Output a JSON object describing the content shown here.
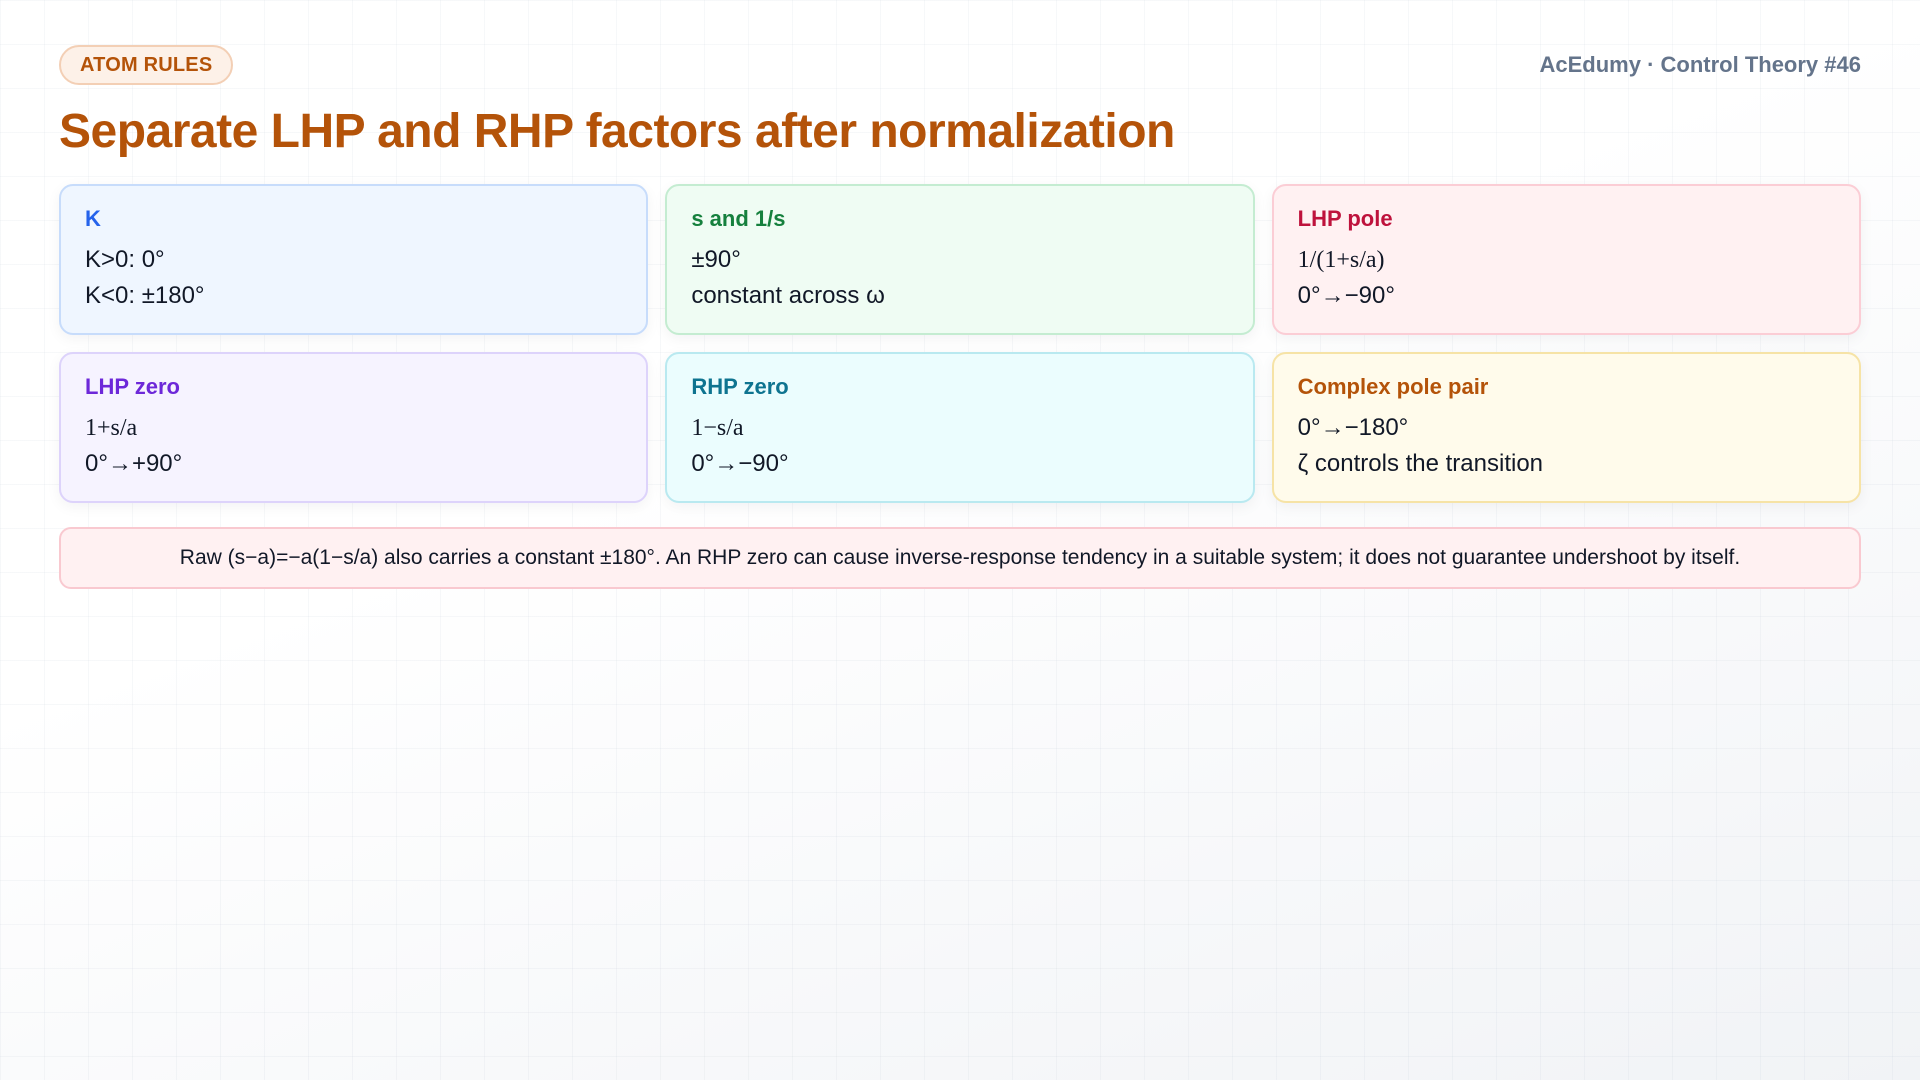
{
  "header": {
    "badge": "ATOM RULES",
    "brand": "AcEdumy · Control Theory #46"
  },
  "title": "Separate LHP and RHP factors after normalization",
  "cards": [
    {
      "title": "K",
      "lines": [
        "K>0: 0°",
        "K<0: ±180°"
      ]
    },
    {
      "title": "s and 1/s",
      "lines": [
        "±90°",
        "constant across ω"
      ]
    },
    {
      "title": "LHP pole",
      "lines": [
        "1/(1+s/a)",
        "0°→−90°"
      ]
    },
    {
      "title": "LHP zero",
      "lines": [
        "1+s/a",
        "0°→+90°"
      ]
    },
    {
      "title": "RHP zero",
      "lines": [
        "1−s/a",
        "0°→−90°"
      ]
    },
    {
      "title": "Complex pole pair",
      "lines": [
        "0°→−180°",
        "ζ controls the transition"
      ]
    }
  ],
  "note": "Raw (s−a)=−a(1−s/a) also carries a constant ±180°. An RHP zero can cause inverse-response tendency in a suitable system; it does not guarantee undershoot by itself."
}
